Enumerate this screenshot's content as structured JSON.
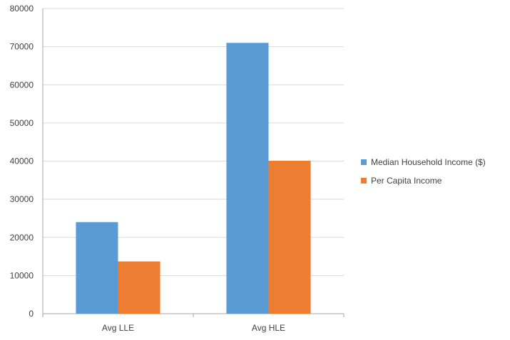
{
  "chart_data": {
    "type": "bar",
    "categories": [
      "Avg LLE",
      "Avg HLE"
    ],
    "series": [
      {
        "name": "Median Household Income ($)",
        "values": [
          24000,
          71000
        ],
        "color": "#5b9bd5"
      },
      {
        "name": "Per Capita Income",
        "values": [
          13700,
          40100
        ],
        "color": "#ed7d31"
      }
    ],
    "ylim": [
      0,
      80000
    ],
    "yticks": [
      0,
      10000,
      20000,
      30000,
      40000,
      50000,
      60000,
      70000,
      80000
    ],
    "grid": true,
    "legend": "right",
    "title": "",
    "xlabel": "",
    "ylabel": ""
  }
}
